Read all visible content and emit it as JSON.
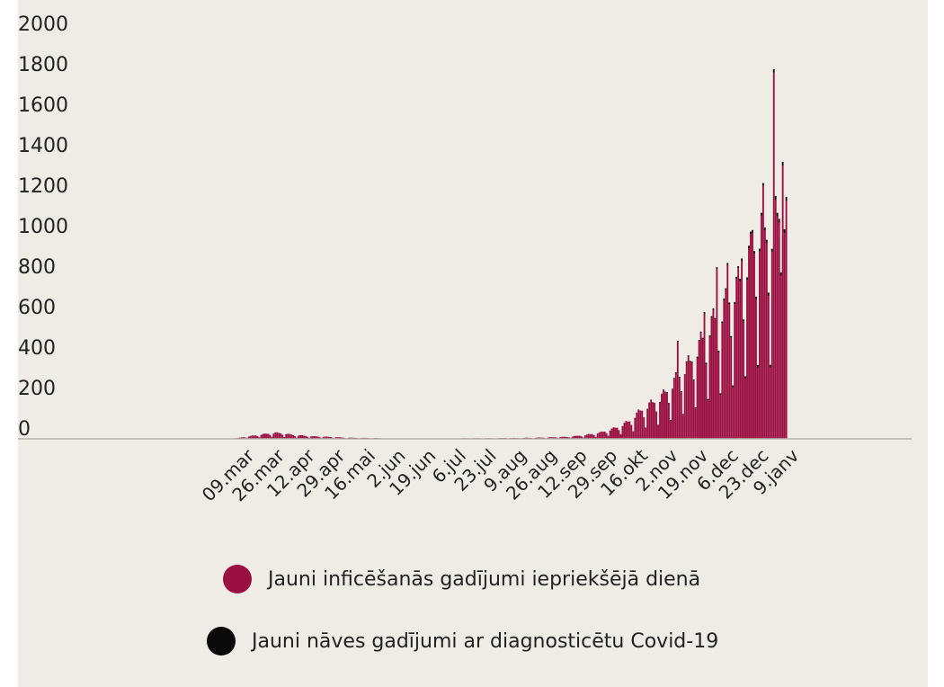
{
  "colors": {
    "cases": "#9b1042",
    "deaths": "#0a0a0a",
    "background": "#eeece5",
    "axis": "#b5b2aa"
  },
  "legend": {
    "items": [
      {
        "key": "cases",
        "icon": "circle",
        "label": "Jauni inficēšanās gadījumi iepriekšējā dienā"
      },
      {
        "key": "deaths",
        "icon": "circle",
        "label": "Jauni nāves gadījumi ar diagnosticētu Covid-19"
      }
    ]
  },
  "chart_data": {
    "type": "bar",
    "stacked": true,
    "x_start": "2020-03-01",
    "x_end": "2021-01-12",
    "ylim": [
      0,
      2000
    ],
    "y_ticks": [
      0,
      200,
      400,
      600,
      800,
      1000,
      1200,
      1400,
      1600,
      1800,
      2000
    ],
    "x_ticks": [
      {
        "date": "2020-03-09",
        "label": "09.mar"
      },
      {
        "date": "2020-03-26",
        "label": "26.mar"
      },
      {
        "date": "2020-04-12",
        "label": "12.apr"
      },
      {
        "date": "2020-04-29",
        "label": "29.apr"
      },
      {
        "date": "2020-05-16",
        "label": "16.mai"
      },
      {
        "date": "2020-06-02",
        "label": "2.jun"
      },
      {
        "date": "2020-06-19",
        "label": "19.jun"
      },
      {
        "date": "2020-07-06",
        "label": "6.jul"
      },
      {
        "date": "2020-07-23",
        "label": "23.jul"
      },
      {
        "date": "2020-08-09",
        "label": "9.aug"
      },
      {
        "date": "2020-08-26",
        "label": "26.aug"
      },
      {
        "date": "2020-09-12",
        "label": "12.sep"
      },
      {
        "date": "2020-09-29",
        "label": "29.sep"
      },
      {
        "date": "2020-10-16",
        "label": "16.okt"
      },
      {
        "date": "2020-11-02",
        "label": "2.nov"
      },
      {
        "date": "2020-11-19",
        "label": "19.nov"
      },
      {
        "date": "2020-12-06",
        "label": "6.dec"
      },
      {
        "date": "2020-12-23",
        "label": "23.dec"
      },
      {
        "date": "2021-01-09",
        "label": "9.janv"
      }
    ],
    "grid": false,
    "legend_position": "bottom",
    "series": [
      {
        "key": "cases",
        "keypoints": [
          [
            "2020-03-09",
            3
          ],
          [
            "2020-03-13",
            8
          ],
          [
            "2020-03-18",
            15
          ],
          [
            "2020-03-22",
            20
          ],
          [
            "2020-03-26",
            25
          ],
          [
            "2020-03-31",
            30
          ],
          [
            "2020-04-04",
            28
          ],
          [
            "2020-04-08",
            22
          ],
          [
            "2020-04-12",
            18
          ],
          [
            "2020-04-17",
            15
          ],
          [
            "2020-04-22",
            12
          ],
          [
            "2020-04-29",
            10
          ],
          [
            "2020-05-05",
            8
          ],
          [
            "2020-05-10",
            6
          ],
          [
            "2020-05-16",
            5
          ],
          [
            "2020-05-23",
            4
          ],
          [
            "2020-05-30",
            3
          ],
          [
            "2020-06-02",
            2
          ],
          [
            "2020-06-19",
            1
          ],
          [
            "2020-07-06",
            2
          ],
          [
            "2020-07-23",
            3
          ],
          [
            "2020-08-09",
            4
          ],
          [
            "2020-08-26",
            6
          ],
          [
            "2020-09-12",
            10
          ],
          [
            "2020-09-22",
            20
          ],
          [
            "2020-09-29",
            30
          ],
          [
            "2020-10-05",
            45
          ],
          [
            "2020-10-11",
            65
          ],
          [
            "2020-10-16",
            90
          ],
          [
            "2020-10-22",
            140
          ],
          [
            "2020-10-27",
            170
          ],
          [
            "2020-11-02",
            200
          ],
          [
            "2020-11-08",
            260
          ],
          [
            "2020-11-14",
            330
          ],
          [
            "2020-11-19",
            380
          ],
          [
            "2020-11-24",
            460
          ],
          [
            "2020-11-30",
            560
          ],
          [
            "2020-12-06",
            620
          ],
          [
            "2020-12-11",
            700
          ],
          [
            "2020-12-17",
            780
          ],
          [
            "2020-12-23",
            920
          ],
          [
            "2020-12-29",
            1050
          ],
          [
            "2021-01-03",
            1000
          ],
          [
            "2021-01-09",
            1150
          ],
          [
            "2021-01-12",
            1120
          ]
        ],
        "spikes": [
          [
            "2020-11-12",
            480
          ],
          [
            "2020-11-27",
            620
          ],
          [
            "2020-12-04",
            840
          ],
          [
            "2020-12-10",
            860
          ],
          [
            "2020-12-18",
            880
          ],
          [
            "2020-12-24",
            1020
          ],
          [
            "2020-12-30",
            1250
          ],
          [
            "2021-01-05",
            1810
          ],
          [
            "2021-01-10",
            1350
          ]
        ]
      },
      {
        "key": "deaths",
        "keypoints": [
          [
            "2020-03-09",
            0
          ],
          [
            "2020-10-20",
            0
          ],
          [
            "2020-11-02",
            2
          ],
          [
            "2020-11-19",
            5
          ],
          [
            "2020-12-06",
            8
          ],
          [
            "2020-12-23",
            12
          ],
          [
            "2021-01-09",
            18
          ],
          [
            "2021-01-12",
            20
          ]
        ]
      }
    ]
  }
}
